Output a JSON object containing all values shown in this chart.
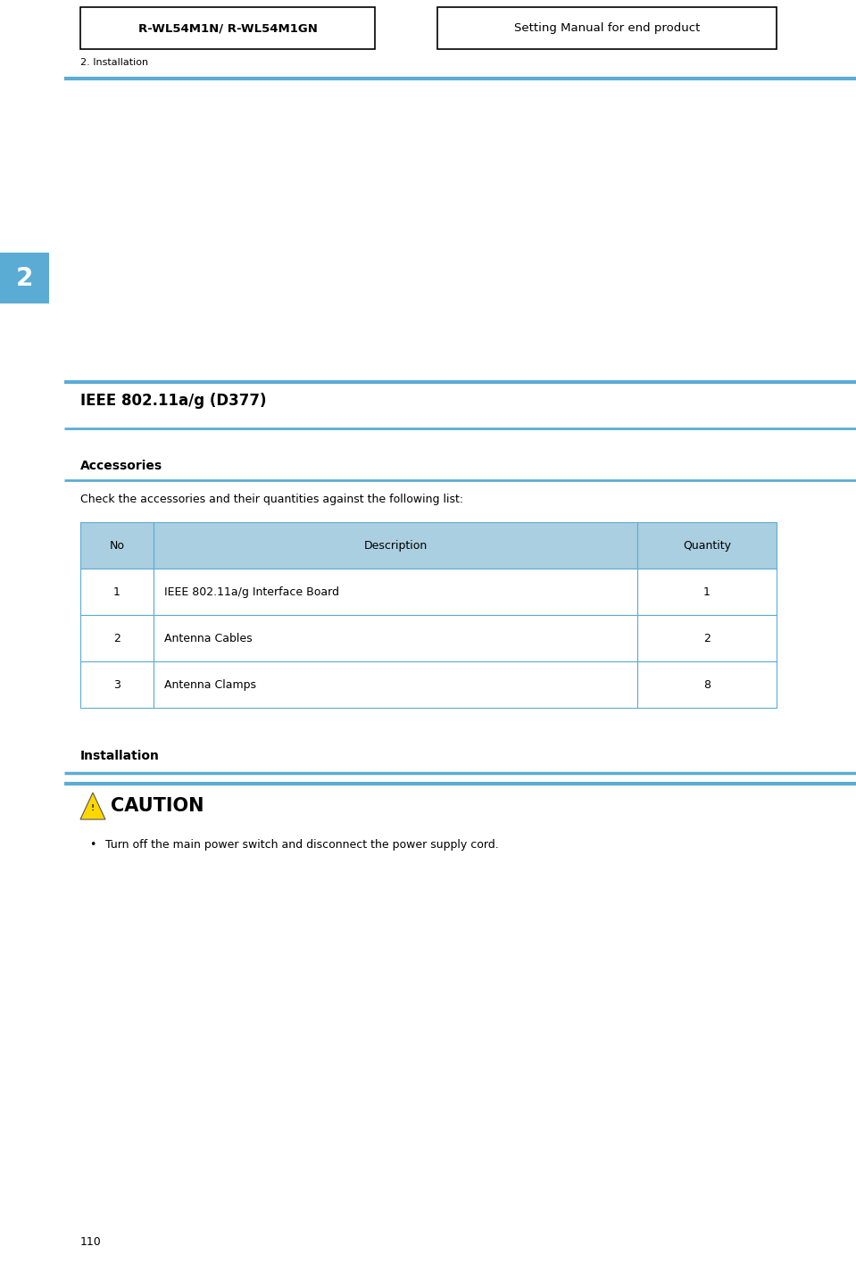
{
  "bg_color": "#ffffff",
  "page_width": 9.59,
  "page_height": 14.15,
  "header_left_text": "R-WL54M1N/ R-WL54M1GN",
  "header_right_text": "Setting Manual for end product",
  "breadcrumb_text": "2. Installation",
  "blue_line_color": "#5bacd4",
  "chapter_box_color": "#5bacd4",
  "chapter_number": "2",
  "section_title": "IEEE 802.11a/g (D377)",
  "subsection_title": "Accessories",
  "intro_text": "Check the accessories and their quantities against the following list:",
  "table_header_bg": "#aacfe0",
  "table_border_color": "#5bacd4",
  "table_headers": [
    "No",
    "Description",
    "Quantity"
  ],
  "table_rows": [
    [
      "1",
      "IEEE 802.11a/g Interface Board",
      "1"
    ],
    [
      "2",
      "Antenna Cables",
      "2"
    ],
    [
      "3",
      "Antenna Clamps",
      "8"
    ]
  ],
  "installation_title": "Installation",
  "caution_text": "CAUTION",
  "caution_bullet": "Turn off the main power switch and disconnect the power supply cord.",
  "footer_page_number": "110"
}
